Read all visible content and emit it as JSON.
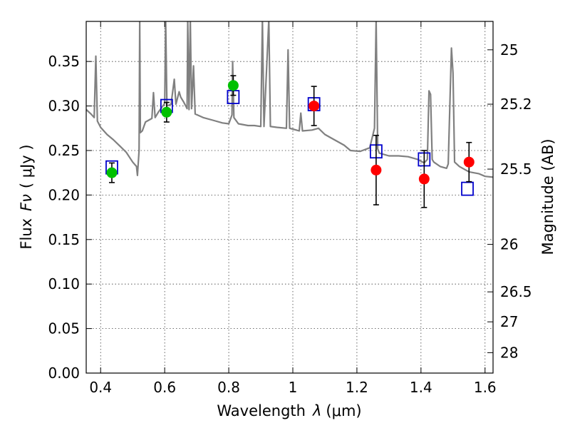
{
  "chart_data": {
    "type": "scatter",
    "xlabel_text": "Wavelength",
    "xlabel_symbol": "λ",
    "xlabel_unit": "(μm)",
    "ylabel_text": "Flux",
    "ylabel_symbol": "Fν",
    "ylabel_unit": "( μJy )",
    "y2label": "Magnitude (AB)",
    "xlim": [
      0.355,
      1.625
    ],
    "ylim": [
      0.0,
      0.395
    ],
    "grid": true,
    "x_ticks": [
      {
        "value": 0.4,
        "label": "0.4"
      },
      {
        "value": 0.6,
        "label": "0.6"
      },
      {
        "value": 0.8,
        "label": "0.8"
      },
      {
        "value": 1.0,
        "label": "1"
      },
      {
        "value": 1.2,
        "label": "1.2"
      },
      {
        "value": 1.4,
        "label": "1.4"
      },
      {
        "value": 1.6,
        "label": "1.6"
      }
    ],
    "y_ticks": [
      {
        "value": 0.0,
        "label": "0.00"
      },
      {
        "value": 0.05,
        "label": "0.05"
      },
      {
        "value": 0.1,
        "label": "0.10"
      },
      {
        "value": 0.15,
        "label": "0.15"
      },
      {
        "value": 0.2,
        "label": "0.20"
      },
      {
        "value": 0.25,
        "label": "0.25"
      },
      {
        "value": 0.3,
        "label": "0.30"
      },
      {
        "value": 0.35,
        "label": "0.35"
      }
    ],
    "mag_ticks": [
      {
        "value": 25,
        "label": "25"
      },
      {
        "value": 25.2,
        "label": "25.2"
      },
      {
        "value": 25.5,
        "label": "25.5"
      },
      {
        "value": 26,
        "label": "26"
      },
      {
        "value": 26.5,
        "label": "26.5"
      },
      {
        "value": 27,
        "label": "27"
      },
      {
        "value": 28,
        "label": "28"
      }
    ],
    "series": [
      {
        "kind": "line",
        "color": "#808080",
        "points": [
          [
            0.355,
            0.296
          ],
          [
            0.37,
            0.291
          ],
          [
            0.38,
            0.287
          ],
          [
            0.385,
            0.356
          ],
          [
            0.39,
            0.283
          ],
          [
            0.4,
            0.276
          ],
          [
            0.42,
            0.268
          ],
          [
            0.44,
            0.262
          ],
          [
            0.46,
            0.255
          ],
          [
            0.48,
            0.248
          ],
          [
            0.5,
            0.237
          ],
          [
            0.512,
            0.232
          ],
          [
            0.515,
            0.222
          ],
          [
            0.52,
            0.25
          ],
          [
            0.522,
            0.397
          ],
          [
            0.524,
            0.27
          ],
          [
            0.53,
            0.272
          ],
          [
            0.54,
            0.282
          ],
          [
            0.56,
            0.286
          ],
          [
            0.565,
            0.315
          ],
          [
            0.57,
            0.287
          ],
          [
            0.58,
            0.293
          ],
          [
            0.59,
            0.298
          ],
          [
            0.6,
            0.303
          ],
          [
            0.603,
            0.397
          ],
          [
            0.607,
            0.3
          ],
          [
            0.62,
            0.302
          ],
          [
            0.63,
            0.33
          ],
          [
            0.635,
            0.302
          ],
          [
            0.645,
            0.316
          ],
          [
            0.65,
            0.31
          ],
          [
            0.66,
            0.304
          ],
          [
            0.67,
            0.297
          ],
          [
            0.672,
            0.397
          ],
          [
            0.676,
            0.296
          ],
          [
            0.68,
            0.397
          ],
          [
            0.684,
            0.297
          ],
          [
            0.69,
            0.345
          ],
          [
            0.695,
            0.291
          ],
          [
            0.72,
            0.287
          ],
          [
            0.75,
            0.284
          ],
          [
            0.78,
            0.281
          ],
          [
            0.8,
            0.28
          ],
          [
            0.81,
            0.29
          ],
          [
            0.812,
            0.35
          ],
          [
            0.816,
            0.287
          ],
          [
            0.83,
            0.28
          ],
          [
            0.86,
            0.278
          ],
          [
            0.88,
            0.278
          ],
          [
            0.9,
            0.277
          ],
          [
            0.905,
            0.397
          ],
          [
            0.91,
            0.277
          ],
          [
            0.925,
            0.397
          ],
          [
            0.93,
            0.277
          ],
          [
            0.95,
            0.276
          ],
          [
            0.98,
            0.275
          ],
          [
            0.985,
            0.363
          ],
          [
            0.99,
            0.275
          ],
          [
            1.0,
            0.274
          ],
          [
            1.02,
            0.272
          ],
          [
            1.025,
            0.292
          ],
          [
            1.03,
            0.272
          ],
          [
            1.06,
            0.273
          ],
          [
            1.08,
            0.275
          ],
          [
            1.1,
            0.268
          ],
          [
            1.13,
            0.262
          ],
          [
            1.16,
            0.256
          ],
          [
            1.18,
            0.25
          ],
          [
            1.21,
            0.249
          ],
          [
            1.24,
            0.253
          ],
          [
            1.255,
            0.275
          ],
          [
            1.26,
            0.397
          ],
          [
            1.265,
            0.252
          ],
          [
            1.27,
            0.247
          ],
          [
            1.3,
            0.244
          ],
          [
            1.33,
            0.244
          ],
          [
            1.36,
            0.243
          ],
          [
            1.39,
            0.24
          ],
          [
            1.41,
            0.236
          ],
          [
            1.42,
            0.24
          ],
          [
            1.425,
            0.317
          ],
          [
            1.43,
            0.313
          ],
          [
            1.435,
            0.24
          ],
          [
            1.44,
            0.237
          ],
          [
            1.46,
            0.232
          ],
          [
            1.48,
            0.23
          ],
          [
            1.485,
            0.235
          ],
          [
            1.495,
            0.365
          ],
          [
            1.5,
            0.337
          ],
          [
            1.505,
            0.237
          ],
          [
            1.52,
            0.232
          ],
          [
            1.55,
            0.226
          ],
          [
            1.58,
            0.224
          ],
          [
            1.6,
            0.221
          ],
          [
            1.625,
            0.22
          ]
        ]
      },
      {
        "kind": "errorbar",
        "marker": "circle",
        "color": "#00c000",
        "points": [
          {
            "x": 0.435,
            "y": 0.225,
            "yerr": 0.011
          },
          {
            "x": 0.606,
            "y": 0.293,
            "yerr": 0.011
          },
          {
            "x": 0.814,
            "y": 0.323,
            "yerr": 0.011
          }
        ]
      },
      {
        "kind": "errorbar",
        "marker": "circle",
        "color": "#ff0000",
        "points": [
          {
            "x": 1.066,
            "y": 0.3,
            "yerr": 0.022
          },
          {
            "x": 1.26,
            "y": 0.228,
            "yerr": 0.039
          },
          {
            "x": 1.41,
            "y": 0.218,
            "yerr": 0.032
          },
          {
            "x": 1.55,
            "y": 0.237,
            "yerr": 0.022
          }
        ]
      },
      {
        "kind": "markers",
        "marker": "open-square",
        "color": "#0000cc",
        "points": [
          [
            0.435,
            0.231
          ],
          [
            0.606,
            0.3
          ],
          [
            0.814,
            0.31
          ],
          [
            1.066,
            0.302
          ],
          [
            1.26,
            0.249
          ],
          [
            1.41,
            0.24
          ],
          [
            1.545,
            0.207
          ]
        ]
      }
    ]
  }
}
